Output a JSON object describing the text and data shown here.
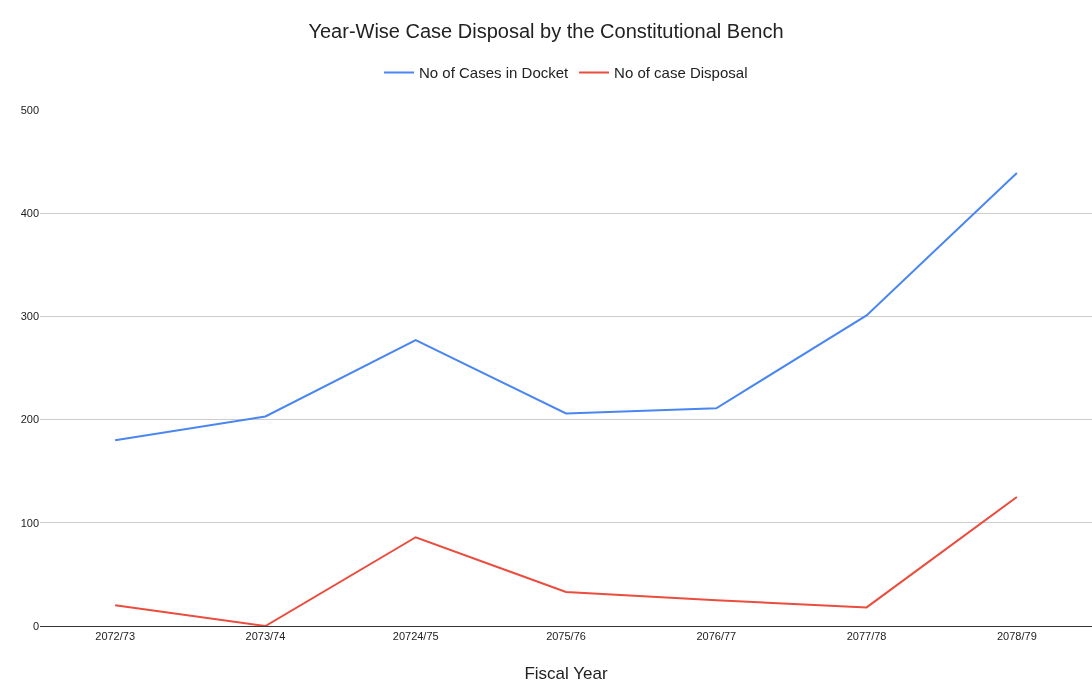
{
  "chart_data": {
    "type": "line",
    "title": "Year-Wise Case Disposal by the Constitutional Bench",
    "xlabel": "Fiscal Year",
    "categories": [
      "2072/73",
      "2073/74",
      "20724/75",
      "2075/76",
      "2076/77",
      "2077/78",
      "2078/79"
    ],
    "series": [
      {
        "name": "No of Cases in Docket",
        "color": "#4a86f0",
        "values": [
          180,
          203,
          277,
          206,
          211,
          301,
          439
        ]
      },
      {
        "name": "No of case Disposal",
        "color": "#ea4d3d",
        "values": [
          20,
          0,
          86,
          33,
          25,
          18,
          125
        ]
      }
    ],
    "ylim": [
      0,
      500
    ],
    "yticks": [
      0,
      100,
      200,
      300,
      400,
      500
    ],
    "grid": "y",
    "legend": "top",
    "marker": "none",
    "line_style": "solid"
  }
}
